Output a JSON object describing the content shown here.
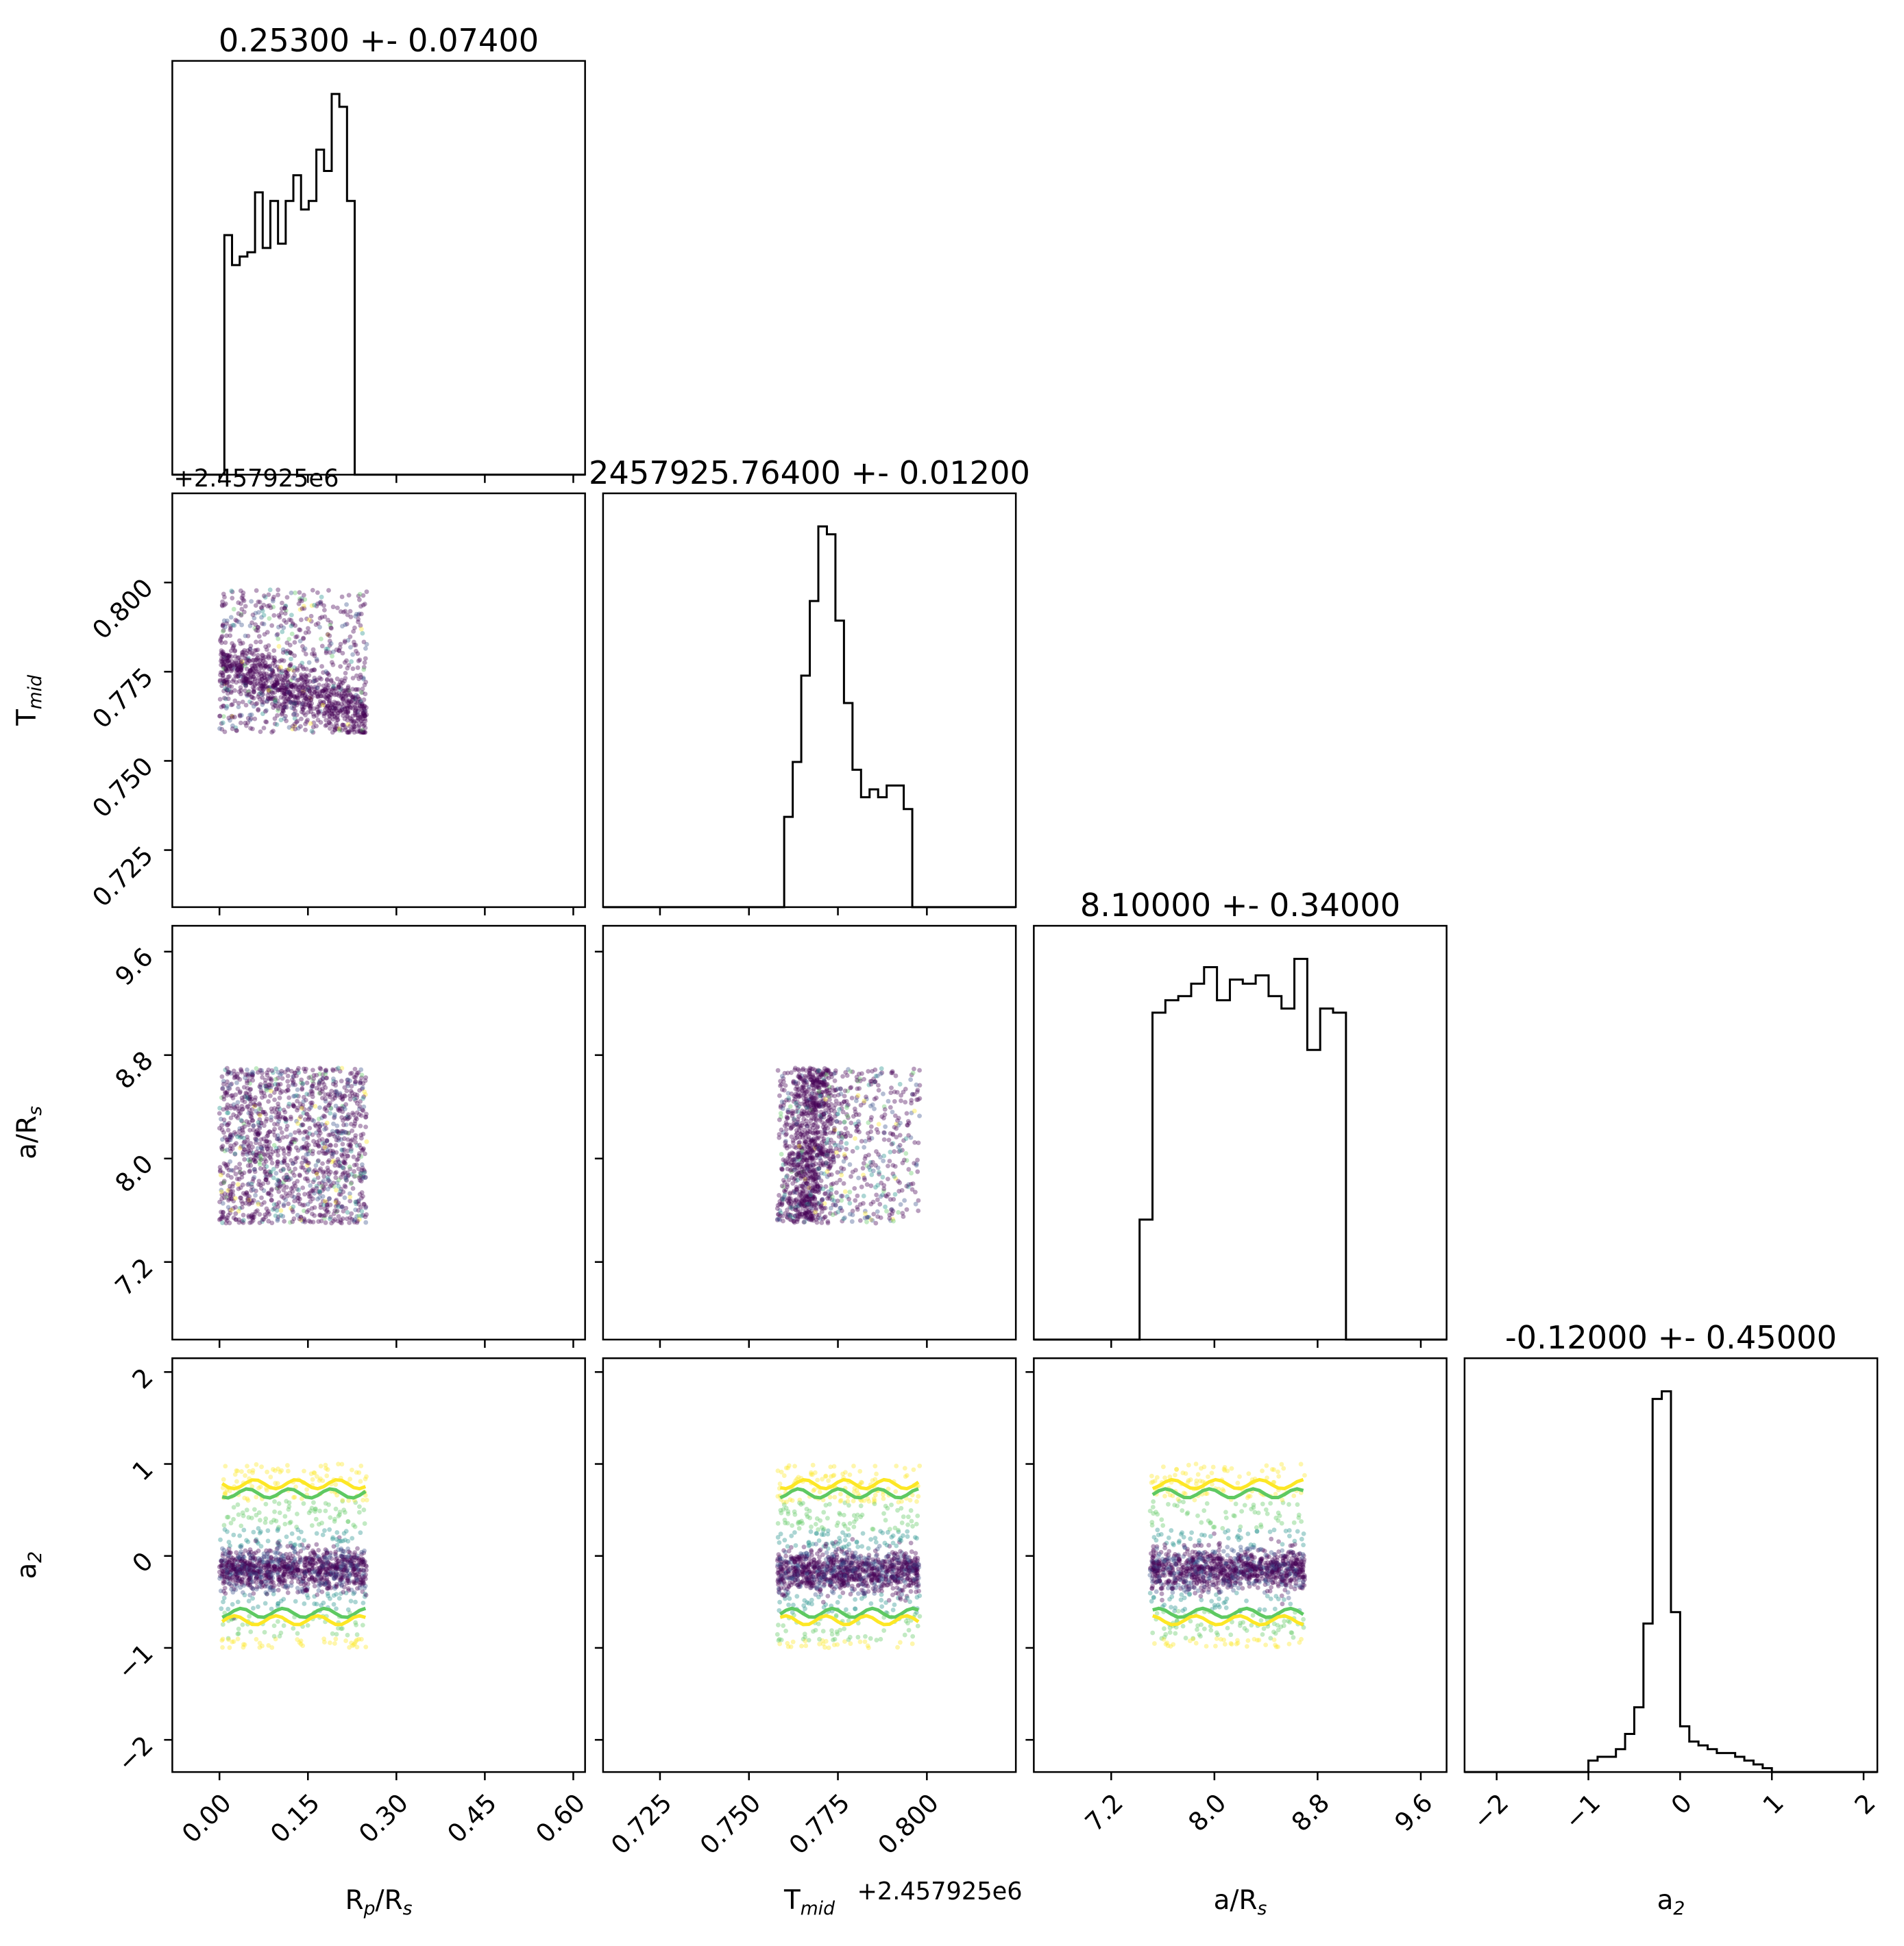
{
  "colors": {
    "axes": "#000000",
    "background": "#ffffff",
    "hist_line": "#000000",
    "scatter_dense": "#440154",
    "scatter_mid_blue": "#3b528b",
    "scatter_teal": "#21918c",
    "scatter_green": "#5ec962",
    "scatter_yellow": "#fde725"
  },
  "chart_data": {
    "type": "corner",
    "grid": false,
    "parameters": [
      {
        "key": "rp",
        "label": "R_p/R_s",
        "label_main": "R",
        "label_sub": "p",
        "label_tail": "/R",
        "label_sub2": "s",
        "title": "0.25300 +- 0.07400",
        "range": [
          -0.08,
          0.62
        ],
        "ticks": [
          "0.00",
          "0.15",
          "0.30",
          "0.45",
          "0.60"
        ]
      },
      {
        "key": "tmid",
        "label": "T_mid",
        "label_main": "T",
        "label_sub": "mid",
        "label_tail": "",
        "label_sub2": "",
        "title": "2457925.76400 +- 0.01200",
        "offset_text": "+2.457925e6",
        "range": [
          0.709,
          0.825
        ],
        "ticks": [
          "0.725",
          "0.750",
          "0.775",
          "0.800"
        ]
      },
      {
        "key": "ars",
        "label": "a/R_s",
        "label_main": "a/R",
        "label_sub": "s",
        "label_tail": "",
        "label_sub2": "",
        "title": "8.10000 +- 0.34000",
        "range": [
          6.6,
          9.8
        ],
        "ticks": [
          "7.2",
          "8.0",
          "8.8",
          "9.6"
        ]
      },
      {
        "key": "a2",
        "label": "a_2",
        "label_main": "a",
        "label_sub": "2",
        "label_tail": "",
        "label_sub2": "",
        "title": "-0.12000 +- 0.45000",
        "range": [
          -2.35,
          2.15
        ],
        "ticks": [
          "−2",
          "−1",
          "0",
          "1",
          "2"
        ]
      }
    ],
    "histograms": {
      "rp": {
        "edges_start": -0.0047,
        "bin_width": 0.013,
        "counts": [
          0,
          0.56,
          0.49,
          0.51,
          0.52,
          0.66,
          0.53,
          0.64,
          0.54,
          0.64,
          0.7,
          0.62,
          0.64,
          0.76,
          0.71,
          0.89,
          0.86,
          0.64,
          0
        ]
      },
      "tmid": {
        "edges_start": 0.7575,
        "bin_width": 0.0024,
        "counts": [
          0,
          0.23,
          0.37,
          0.59,
          0.78,
          0.97,
          0.95,
          0.73,
          0.52,
          0.35,
          0.28,
          0.3,
          0.28,
          0.31,
          0.31,
          0.25,
          0,
          0
        ]
      },
      "ars": {
        "edges_start": 7.42,
        "bin_width": 0.1,
        "counts": [
          0.29,
          0.79,
          0.82,
          0.83,
          0.86,
          0.9,
          0.82,
          0.87,
          0.86,
          0.88,
          0.83,
          0.8,
          0.92,
          0.7,
          0.8,
          0.79,
          0
        ]
      },
      "a2": {
        "edges_start": -1.0,
        "bin_width": 0.1,
        "counts": [
          0.03,
          0.04,
          0.04,
          0.06,
          0.1,
          0.17,
          0.39,
          0.98,
          1.0,
          0.42,
          0.12,
          0.08,
          0.07,
          0.06,
          0.05,
          0.05,
          0.04,
          0.03,
          0.02,
          0.01
        ]
      }
    },
    "scatter_panels": [
      {
        "x": "rp",
        "y": "tmid",
        "x_range": [
          0.0,
          0.25
        ],
        "y_range": [
          0.758,
          0.798
        ],
        "dense_center_y": 0.77,
        "dense_spread": 0.006,
        "contours": false
      },
      {
        "x": "rp",
        "y": "ars",
        "x_range": [
          0.0,
          0.25
        ],
        "y_range": [
          7.5,
          8.7
        ],
        "dense_center_y": 8.1,
        "dense_spread": 0.6,
        "contours": false
      },
      {
        "x": "tmid",
        "y": "ars",
        "x_range": [
          0.758,
          0.798
        ],
        "y_range": [
          7.5,
          8.7
        ],
        "dense_center_x": 0.767,
        "dense_spread": 0.004,
        "contours": false
      },
      {
        "x": "rp",
        "y": "a2",
        "x_range": [
          0.0,
          0.25
        ],
        "y_range": [
          -1.0,
          1.0
        ],
        "dense_center_y": -0.15,
        "dense_spread": 0.18,
        "contours": true
      },
      {
        "x": "tmid",
        "y": "a2",
        "x_range": [
          0.758,
          0.798
        ],
        "y_range": [
          -1.0,
          1.0
        ],
        "dense_center_y": -0.17,
        "dense_spread": 0.18,
        "contours": true
      },
      {
        "x": "ars",
        "y": "a2",
        "x_range": [
          7.5,
          8.7
        ],
        "y_range": [
          -1.0,
          1.0
        ],
        "dense_center_y": -0.15,
        "dense_spread": 0.18,
        "contours": true
      }
    ]
  }
}
